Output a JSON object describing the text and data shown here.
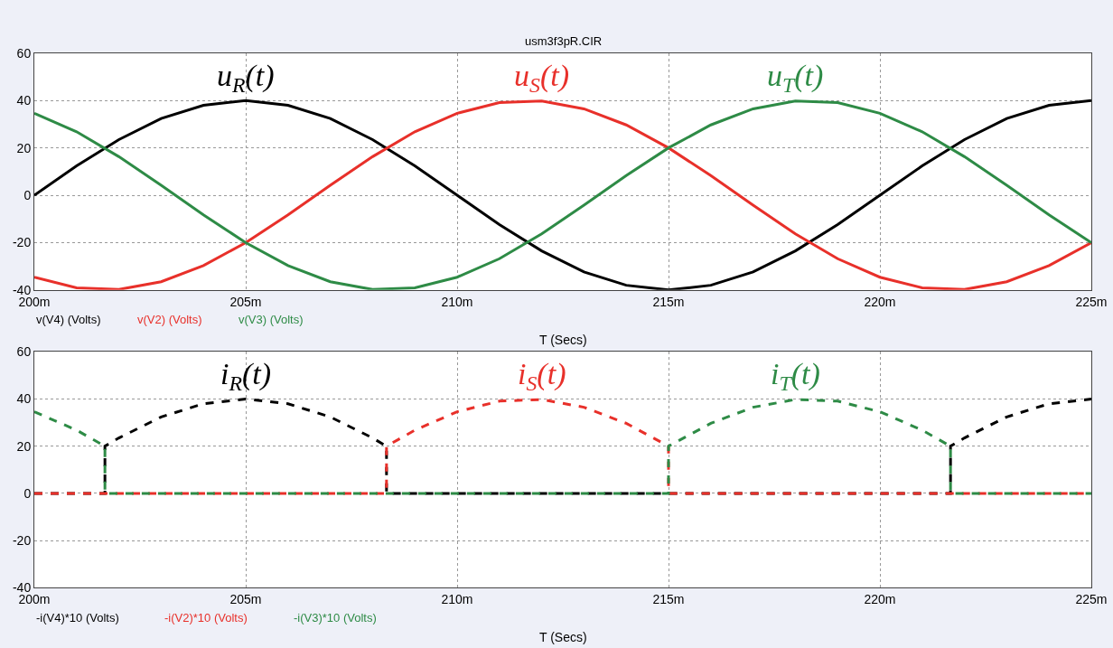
{
  "chart_data": [
    {
      "type": "line",
      "title": "usm3f3pR.CIR",
      "xlabel": "T (Secs)",
      "x": [
        200,
        201,
        202,
        203,
        204,
        205,
        206,
        207,
        208,
        209,
        210,
        211,
        212,
        213,
        214,
        215,
        216,
        217,
        218,
        219,
        220,
        221,
        222,
        223,
        224,
        225
      ],
      "series": [
        {
          "name": "v(V4) (Volts)",
          "color": "#000000",
          "values": [
            0,
            12.4,
            23.5,
            32.4,
            38.0,
            40,
            38.0,
            32.4,
            23.5,
            12.4,
            0,
            -12.4,
            -23.5,
            -32.4,
            -38.0,
            -40,
            -38.0,
            -32.4,
            -23.5,
            -12.4,
            0,
            12.4,
            23.5,
            32.4,
            38.0,
            40
          ]
        },
        {
          "name": "v(V2) (Volts)",
          "color": "#e8302a",
          "values": [
            -34.6,
            -39.1,
            -39.8,
            -36.5,
            -29.7,
            -20,
            -8.3,
            4.2,
            16.3,
            26.8,
            34.6,
            39.1,
            39.8,
            36.5,
            29.7,
            20,
            8.3,
            -4.2,
            -16.3,
            -26.8,
            -34.6,
            -39.1,
            -39.8,
            -36.5,
            -29.7,
            -20
          ]
        },
        {
          "name": "v(V3) (Volts)",
          "color": "#2e8b46",
          "values": [
            34.6,
            26.8,
            16.3,
            4.2,
            -8.3,
            -20,
            -29.7,
            -36.5,
            -39.8,
            -39.1,
            -34.6,
            -26.8,
            -16.3,
            -4.2,
            8.3,
            20,
            29.7,
            36.5,
            39.8,
            39.1,
            34.6,
            26.8,
            16.3,
            4.2,
            -8.3,
            -20
          ]
        }
      ],
      "xlim": [
        200,
        225
      ],
      "xticks": [
        {
          "value": 200,
          "label": "200m"
        },
        {
          "value": 205,
          "label": "205m"
        },
        {
          "value": 210,
          "label": "210m"
        },
        {
          "value": 215,
          "label": "215m"
        },
        {
          "value": 220,
          "label": "220m"
        },
        {
          "value": 225,
          "label": "225m"
        }
      ],
      "ylim": [
        -40,
        60
      ],
      "yticks": [
        -40,
        -20,
        0,
        20,
        40,
        60
      ],
      "grid": true,
      "line_style": "solid",
      "legend": "bottom left",
      "annotations": [
        "u$_{R}$(t)",
        "u$_{S}$(t)",
        "u$_{T}$(t)"
      ]
    },
    {
      "type": "line",
      "xlabel": "T (Secs)",
      "series": [
        {
          "name": "-i(V4)*10 (Volts)",
          "color": "#000000",
          "x": [
            200,
            201.67,
            201.67,
            202,
            203,
            204,
            205,
            206,
            207,
            208,
            208.33,
            208.33,
            221.67,
            221.67,
            222,
            223,
            224,
            225
          ],
          "values": [
            0,
            0,
            20,
            23.5,
            32.4,
            38.0,
            40,
            38.0,
            32.4,
            23.5,
            20,
            0,
            0,
            20,
            23.5,
            32.4,
            38.0,
            40
          ]
        },
        {
          "name": "-i(V2)*10 (Volts)",
          "color": "#e8302a",
          "x": [
            200,
            208.33,
            208.33,
            209,
            210,
            211,
            212,
            213,
            214,
            215,
            215,
            225
          ],
          "values": [
            0,
            0,
            20,
            26.8,
            34.6,
            39.1,
            39.8,
            36.5,
            29.7,
            20,
            0,
            0
          ]
        },
        {
          "name": "-i(V3)*10 (Volts)",
          "color": "#2e8b46",
          "x": [
            200,
            201,
            201.67,
            201.67,
            215,
            215,
            216,
            217,
            218,
            219,
            220,
            221,
            221.67,
            221.67,
            225
          ],
          "values": [
            34.6,
            26.8,
            20,
            0,
            0,
            20,
            29.7,
            36.5,
            39.8,
            39.1,
            34.6,
            26.8,
            20,
            0,
            0
          ]
        }
      ],
      "xlim": [
        200,
        225
      ],
      "xticks": [
        {
          "value": 200,
          "label": "200m"
        },
        {
          "value": 205,
          "label": "205m"
        },
        {
          "value": 210,
          "label": "210m"
        },
        {
          "value": 215,
          "label": "215m"
        },
        {
          "value": 220,
          "label": "220m"
        },
        {
          "value": 225,
          "label": "225m"
        }
      ],
      "ylim": [
        -40,
        60
      ],
      "yticks": [
        -40,
        -20,
        0,
        20,
        40,
        60
      ],
      "grid": true,
      "line_style": "dashed",
      "legend": "bottom left",
      "annotations": [
        "i$_{R}$(t)",
        "i$_{S}$(t)",
        "i$_{T}$(t)"
      ]
    }
  ]
}
